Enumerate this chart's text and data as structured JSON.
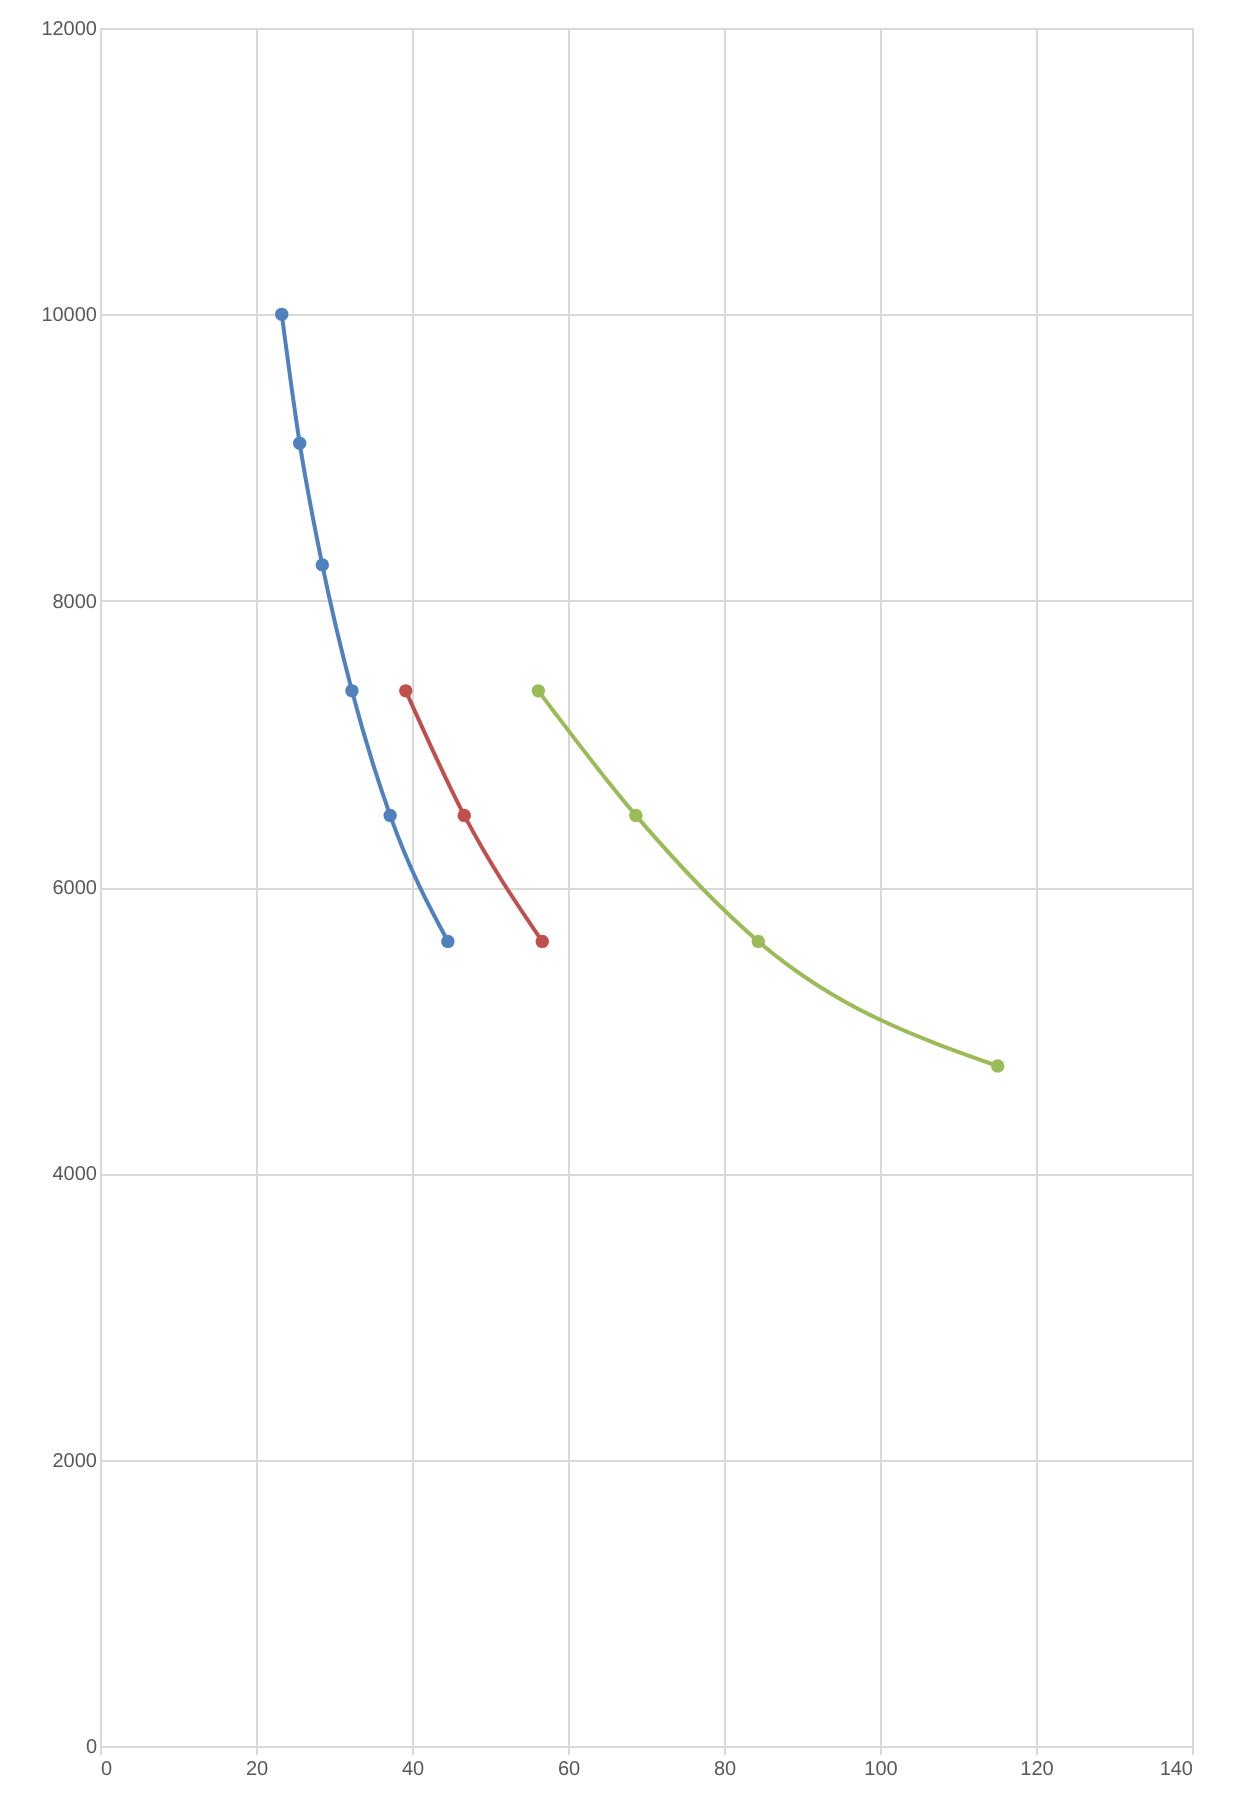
{
  "chart_data": {
    "type": "line",
    "xlim": [
      0,
      140
    ],
    "ylim": [
      0,
      12000
    ],
    "xticks": [
      0,
      20,
      40,
      60,
      80,
      100,
      120,
      140
    ],
    "yticks": [
      0,
      2000,
      4000,
      6000,
      8000,
      10000,
      12000
    ],
    "grid": true,
    "marker": "circle",
    "line_style": "solid",
    "series": [
      {
        "color": "#4f81bd",
        "x": [
          23.3,
          25.6,
          28.5,
          32.3,
          37.2,
          44.6
        ],
        "values": [
          10000,
          9100,
          8250,
          7370,
          6500,
          5620
        ]
      },
      {
        "color": "#c0504d",
        "x": [
          39.2,
          46.7,
          56.7
        ],
        "values": [
          7370,
          6500,
          5620
        ]
      },
      {
        "color": "#9bbb59",
        "x": [
          56.2,
          68.7,
          84.4,
          115.1
        ],
        "values": [
          7370,
          6500,
          5620,
          4750
        ]
      }
    ]
  }
}
